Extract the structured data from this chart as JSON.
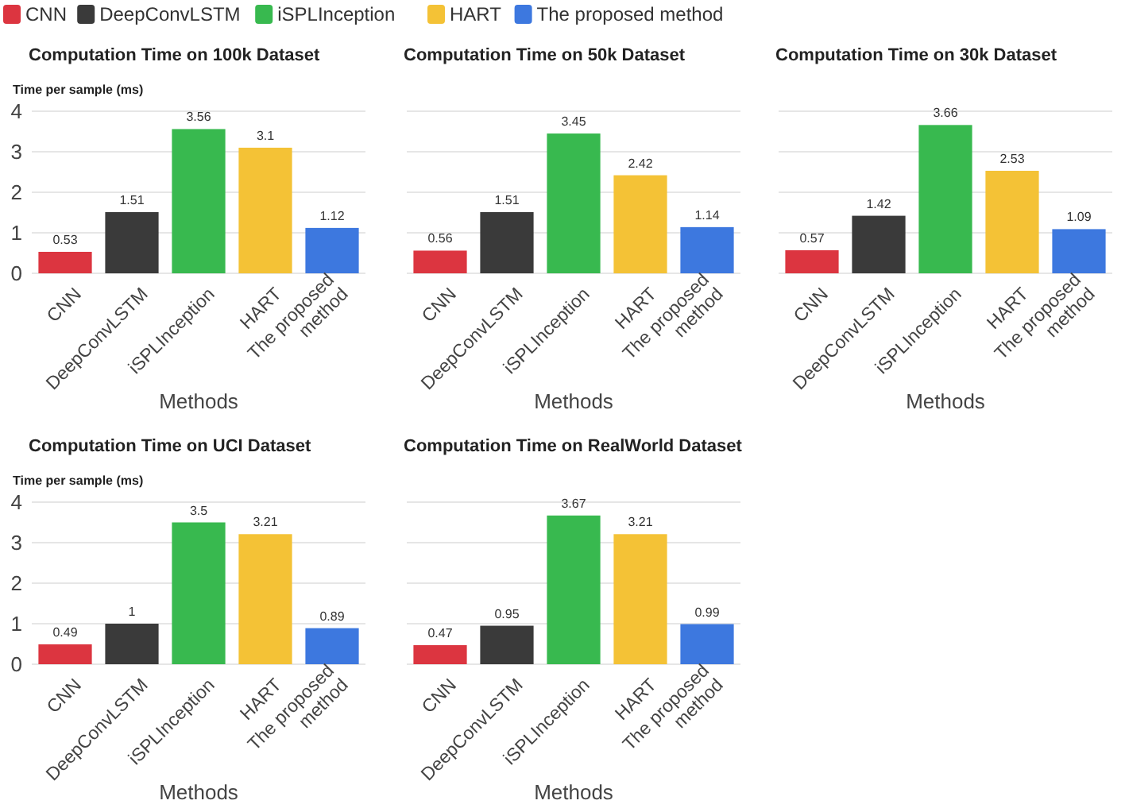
{
  "chart_data": [
    {
      "type": "bar",
      "title": "Computation Time on 100k Dataset",
      "xlabel": "Methods",
      "ylabel": "Time per sample (ms)",
      "categories": [
        "CNN",
        "DeepConvLSTM",
        "iSPLInception",
        "HART",
        "The proposed method"
      ],
      "series": [
        {
          "name": "CNN",
          "color": "#dc3540",
          "values": [
            0.53,
            null,
            null,
            null,
            null
          ]
        },
        {
          "name": "DeepConvLSTM",
          "color": "#3a3a3a",
          "values": [
            null,
            1.51,
            null,
            null,
            null
          ]
        },
        {
          "name": "iSPLInception",
          "color": "#38b94f",
          "values": [
            null,
            null,
            3.56,
            null,
            null
          ]
        },
        {
          "name": "HART",
          "color": "#f4c236",
          "values": [
            null,
            null,
            null,
            3.1,
            null
          ]
        },
        {
          "name": "The proposed method",
          "color": "#3d78df",
          "values": [
            null,
            null,
            null,
            null,
            1.12
          ]
        }
      ],
      "ylim": [
        0,
        4
      ],
      "yticks": [
        0,
        1,
        2,
        3,
        4
      ],
      "grid": "y",
      "data_labels": true,
      "legend": "top"
    },
    {
      "type": "bar",
      "title": "Computation Time on 50k Dataset",
      "xlabel": "Methods",
      "categories": [
        "CNN",
        "DeepConvLSTM",
        "iSPLInception",
        "HART",
        "The proposed method"
      ],
      "series": [
        {
          "name": "CNN",
          "color": "#dc3540",
          "values": [
            0.56,
            null,
            null,
            null,
            null
          ]
        },
        {
          "name": "DeepConvLSTM",
          "color": "#3a3a3a",
          "values": [
            null,
            1.51,
            null,
            null,
            null
          ]
        },
        {
          "name": "iSPLInception",
          "color": "#38b94f",
          "values": [
            null,
            null,
            3.45,
            null,
            null
          ]
        },
        {
          "name": "HART",
          "color": "#f4c236",
          "values": [
            null,
            null,
            null,
            2.42,
            null
          ]
        },
        {
          "name": "The proposed method",
          "color": "#3d78df",
          "values": [
            null,
            null,
            null,
            null,
            1.14
          ]
        }
      ],
      "ylim": [
        0,
        4
      ],
      "yticks": [
        0,
        1,
        2,
        3,
        4
      ],
      "grid": "y",
      "data_labels": true,
      "tick_labels": "x"
    },
    {
      "type": "bar",
      "title": "Computation Time on 30k Dataset",
      "xlabel": "Methods",
      "categories": [
        "CNN",
        "DeepConvLSTM",
        "iSPLInception",
        "HART",
        "The proposed method"
      ],
      "series": [
        {
          "name": "CNN",
          "color": "#dc3540",
          "values": [
            0.57,
            null,
            null,
            null,
            null
          ]
        },
        {
          "name": "DeepConvLSTM",
          "color": "#3a3a3a",
          "values": [
            null,
            1.42,
            null,
            null,
            null
          ]
        },
        {
          "name": "iSPLInception",
          "color": "#38b94f",
          "values": [
            null,
            null,
            3.66,
            null,
            null
          ]
        },
        {
          "name": "HART",
          "color": "#f4c236",
          "values": [
            null,
            null,
            null,
            2.53,
            null
          ]
        },
        {
          "name": "The proposed method",
          "color": "#3d78df",
          "values": [
            null,
            null,
            null,
            null,
            1.09
          ]
        }
      ],
      "ylim": [
        0,
        4
      ],
      "yticks": [
        0,
        1,
        2,
        3,
        4
      ],
      "grid": "y",
      "data_labels": true,
      "tick_labels": "x"
    },
    {
      "type": "bar",
      "title": "Computation Time on UCI Dataset",
      "xlabel": "Methods",
      "ylabel": "Time per sample (ms)",
      "categories": [
        "CNN",
        "DeepConvLSTM",
        "iSPLInception",
        "HART",
        "The proposed method"
      ],
      "series": [
        {
          "name": "CNN",
          "color": "#dc3540",
          "values": [
            0.49,
            null,
            null,
            null,
            null
          ]
        },
        {
          "name": "DeepConvLSTM",
          "color": "#3a3a3a",
          "values": [
            null,
            1,
            null,
            null,
            null
          ]
        },
        {
          "name": "iSPLInception",
          "color": "#38b94f",
          "values": [
            null,
            null,
            3.5,
            null,
            null
          ]
        },
        {
          "name": "HART",
          "color": "#f4c236",
          "values": [
            null,
            null,
            null,
            3.21,
            null
          ]
        },
        {
          "name": "The proposed method",
          "color": "#3d78df",
          "values": [
            null,
            null,
            null,
            null,
            0.89
          ]
        }
      ],
      "ylim": [
        0,
        4
      ],
      "yticks": [
        0,
        1,
        2,
        3,
        4
      ],
      "grid": "y",
      "data_labels": true
    },
    {
      "type": "bar",
      "title": "Computation Time on RealWorld Dataset",
      "xlabel": "Methods",
      "categories": [
        "CNN",
        "DeepConvLSTM",
        "iSPLInception",
        "HART",
        "The proposed method"
      ],
      "series": [
        {
          "name": "CNN",
          "color": "#dc3540",
          "values": [
            0.47,
            null,
            null,
            null,
            null
          ]
        },
        {
          "name": "DeepConvLSTM",
          "color": "#3a3a3a",
          "values": [
            null,
            0.95,
            null,
            null,
            null
          ]
        },
        {
          "name": "iSPLInception",
          "color": "#38b94f",
          "values": [
            null,
            null,
            3.67,
            null,
            null
          ]
        },
        {
          "name": "HART",
          "color": "#f4c236",
          "values": [
            null,
            null,
            null,
            3.21,
            null
          ]
        },
        {
          "name": "The proposed method",
          "color": "#3d78df",
          "values": [
            null,
            null,
            null,
            null,
            0.99
          ]
        }
      ],
      "ylim": [
        0,
        4
      ],
      "yticks": [
        0,
        1,
        2,
        3,
        4
      ],
      "grid": "y",
      "data_labels": true,
      "tick_labels": "x"
    }
  ]
}
